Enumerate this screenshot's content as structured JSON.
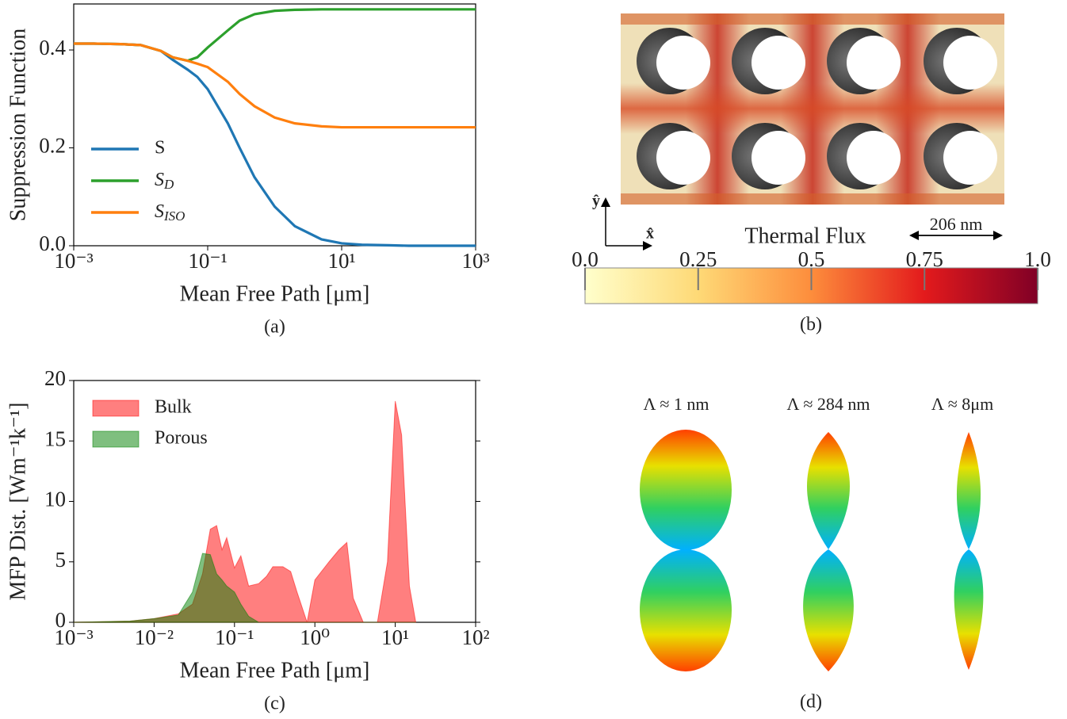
{
  "chart_data": [
    {
      "type": "line",
      "xlabel": "Mean Free Path [μm]",
      "ylabel": "Suppression Function",
      "caption": "(a)",
      "xscale": "log",
      "xlim": [
        0.001,
        1000
      ],
      "ylim": [
        0,
        0.494
      ],
      "xticks": [
        {
          "value": 0.001,
          "label": "10⁻³"
        },
        {
          "value": 0.1,
          "label": "10⁻¹"
        },
        {
          "value": 10,
          "label": "10¹"
        },
        {
          "value": 1000,
          "label": "10³"
        }
      ],
      "yticks": [
        {
          "value": 0,
          "label": "0.0"
        },
        0.2,
        0.4
      ],
      "legend": "lower left",
      "x": [
        0.001,
        0.002,
        0.005,
        0.01,
        0.02,
        0.03,
        0.05,
        0.07,
        0.1,
        0.2,
        0.3,
        0.5,
        1,
        2,
        5,
        10,
        20,
        50,
        100,
        1000
      ],
      "series": [
        {
          "name": "S",
          "color": "#1f77b4",
          "values": [
            0.413,
            0.413,
            0.412,
            0.41,
            0.398,
            0.38,
            0.36,
            0.345,
            0.32,
            0.25,
            0.2,
            0.14,
            0.08,
            0.04,
            0.013,
            0.005,
            0.002,
            0.001,
            0,
            0
          ]
        },
        {
          "name": "SD",
          "color": "#2ca02c",
          "values": [
            0.413,
            0.413,
            0.412,
            0.41,
            0.398,
            0.385,
            0.378,
            0.385,
            0.405,
            0.44,
            0.46,
            0.473,
            0.48,
            0.482,
            0.483,
            0.483,
            0.483,
            0.483,
            0.483,
            0.483
          ]
        },
        {
          "name": "SISO",
          "color": "#ff7f0e",
          "values": [
            0.413,
            0.413,
            0.412,
            0.41,
            0.398,
            0.385,
            0.378,
            0.372,
            0.365,
            0.335,
            0.31,
            0.285,
            0.262,
            0.25,
            0.244,
            0.242,
            0.242,
            0.242,
            0.242,
            0.242
          ]
        }
      ]
    },
    {
      "type": "area",
      "xlabel": "Mean Free Path [μm]",
      "ylabel": "MFP Dist. [Wm⁻¹k⁻¹]",
      "caption": "(c)",
      "xscale": "log",
      "xlim": [
        0.001,
        100
      ],
      "ylim": [
        0,
        20
      ],
      "alpha": 0.5,
      "xticks": [
        {
          "value": 0.001,
          "label": "10⁻³"
        },
        {
          "value": 0.01,
          "label": "10⁻²"
        },
        {
          "value": 0.1,
          "label": "10⁻¹"
        },
        {
          "value": 1,
          "label": "10⁰"
        },
        {
          "value": 10,
          "label": "10¹"
        },
        {
          "value": 100,
          "label": "10²"
        }
      ],
      "yticks": [
        0,
        5,
        10,
        15,
        20
      ],
      "legend": "upper left",
      "x": [
        0.001,
        0.005,
        0.01,
        0.02,
        0.03,
        0.04,
        0.05,
        0.06,
        0.07,
        0.08,
        0.1,
        0.12,
        0.15,
        0.2,
        0.25,
        0.3,
        0.4,
        0.5,
        0.6,
        0.8,
        1,
        1.5,
        2,
        2.5,
        3,
        4,
        6,
        8,
        10,
        12,
        15,
        18
      ],
      "series": [
        {
          "name": "Bulk",
          "color": "#ff0000",
          "values": [
            0,
            0.1,
            0.3,
            0.7,
            1.5,
            4,
            7.7,
            8,
            6,
            7,
            4.5,
            5.5,
            3,
            3.2,
            3.8,
            4.6,
            4.6,
            4.2,
            2.5,
            0,
            3.5,
            5,
            6,
            6.6,
            2,
            0,
            0,
            5,
            18.3,
            15.5,
            3,
            0
          ]
        },
        {
          "name": "Porous",
          "color": "#008000",
          "values": [
            0,
            0.1,
            0.3,
            0.6,
            2.5,
            5.7,
            5.6,
            4,
            3.5,
            3,
            2.5,
            1.5,
            0.5,
            0,
            0,
            0,
            0,
            0,
            0,
            0,
            0,
            0,
            0,
            0,
            0,
            0,
            0,
            0,
            0,
            0,
            0,
            0
          ]
        }
      ]
    }
  ],
  "panel_b": {
    "axis_y": "ŷ",
    "axis_x": "x̂",
    "colorbar_label": "Thermal Flux",
    "scale_label": "206 nm",
    "colorbar_lim": [
      0,
      1
    ],
    "colorbar_ticks": [
      {
        "value": 0,
        "label": "0.0"
      },
      0.25,
      0.5,
      0.75,
      {
        "value": 1,
        "label": "1.0"
      }
    ],
    "caption": "(b)"
  },
  "panel_d": {
    "labels": [
      "Λ ≈ 1 nm",
      "Λ ≈ 284 nm",
      "Λ ≈ 8μm"
    ],
    "caption": "(d)"
  }
}
